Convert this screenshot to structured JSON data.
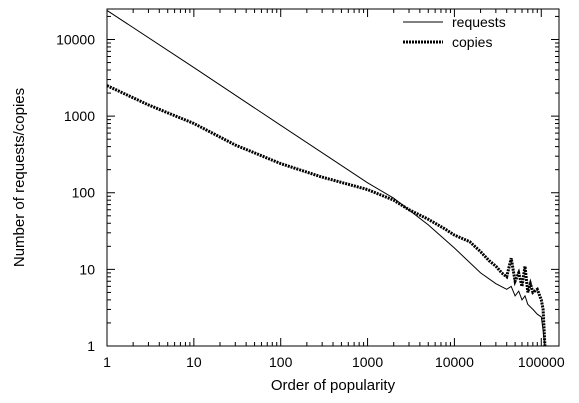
{
  "chart_data": {
    "type": "line",
    "title": "",
    "xlabel": "Order of popularity",
    "ylabel": "Number of requests/copies",
    "xscale": "log",
    "yscale": "log",
    "xlim": [
      1,
      160000
    ],
    "ylim": [
      1,
      25000
    ],
    "grid": false,
    "legend_position": "top-right",
    "x_ticks": [
      {
        "value": 1,
        "label": "1"
      },
      {
        "value": 10,
        "label": "10"
      },
      {
        "value": 100,
        "label": "100"
      },
      {
        "value": 1000,
        "label": "1000"
      },
      {
        "value": 10000,
        "label": "10000"
      },
      {
        "value": 100000,
        "label": "100000"
      }
    ],
    "y_ticks": [
      {
        "value": 1,
        "label": "1"
      },
      {
        "value": 10,
        "label": "10"
      },
      {
        "value": 100,
        "label": "100"
      },
      {
        "value": 1000,
        "label": "1000"
      },
      {
        "value": 10000,
        "label": "10000"
      }
    ],
    "series": [
      {
        "name": "requests",
        "style": "solid",
        "color": "#000000",
        "x": [
          1,
          10,
          100,
          1000,
          2000,
          5000,
          10000,
          20000,
          30000,
          40000,
          45000,
          50000,
          55000,
          60000,
          65000,
          70000,
          80000,
          90000,
          100000,
          105000,
          110000
        ],
        "y": [
          24000,
          4300,
          760,
          135,
          85,
          38,
          19,
          9,
          6.5,
          5.5,
          6,
          4.5,
          5.2,
          4,
          4.5,
          3.5,
          3,
          2.6,
          2.4,
          1.6,
          1
        ]
      },
      {
        "name": "copies",
        "style": "dotted",
        "color": "#000000",
        "x": [
          1,
          3,
          10,
          30,
          100,
          300,
          1000,
          2000,
          3000,
          5000,
          8000,
          10000,
          15000,
          20000,
          25000,
          30000,
          35000,
          40000,
          45000,
          50000,
          55000,
          60000,
          65000,
          70000,
          75000,
          80000,
          90000,
          100000,
          105000,
          110000
        ],
        "y": [
          2500,
          1400,
          800,
          420,
          240,
          160,
          110,
          80,
          60,
          45,
          33,
          28,
          23,
          17,
          13,
          11,
          9,
          8,
          14,
          7,
          9,
          6,
          11,
          5,
          6.5,
          5,
          5.5,
          4,
          3,
          1
        ]
      }
    ]
  }
}
